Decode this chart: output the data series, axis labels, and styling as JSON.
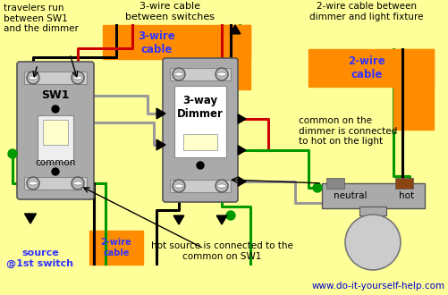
{
  "bg_color": "#FFFF99",
  "orange_color": "#FF8C00",
  "blue_label_color": "#3333FF",
  "wire_black": "#000000",
  "wire_red": "#CC0000",
  "wire_green": "#009900",
  "wire_gray": "#999999",
  "sw_body": "#AAAAAA",
  "sw_face_white": "#EEEEEE",
  "sw_toggle": "#FFFFCC",
  "website": "www.do-it-yourself-help.com",
  "website_color": "#0000CC",
  "label_travelers": "travelers run\nbetween SW1\nand the dimmer",
  "label_3wire_top": "3-wire cable\nbetween switches",
  "label_3wire_box": "3-wire\ncable",
  "label_2wire_top_right": "2-wire cable between\ndimmer and light fixture",
  "label_2wire_box_right": "2-wire\ncable",
  "label_common_dimmer": "common on the\ndimmer is connected\nto hot on the light",
  "label_source": "source\n@1st switch",
  "label_2wire_bottom": "2-wire\ncable",
  "label_hot_source": "hot source is connected to the\ncommon on SW1",
  "label_sw1": "SW1",
  "label_dimmer": "3-way\nDimmer",
  "label_neutral": "neutral",
  "label_hot": "hot",
  "label_common": "common"
}
